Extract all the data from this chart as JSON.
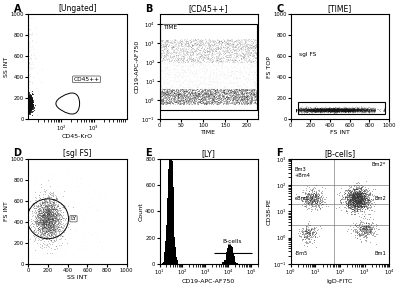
{
  "fig_width": 4.0,
  "fig_height": 2.88,
  "dpi": 100,
  "panel_titles": {
    "A": "[Ungated]",
    "B": "[CD45++]",
    "C": "[TIME]",
    "D": "[sgl FS]",
    "E": "[LY]",
    "F": "[B-cells]"
  },
  "A": {
    "xlabel": "CD45-KrO",
    "ylabel": "SS INT",
    "gate_label": "CD45++",
    "xlim_log": [
      1,
      4
    ],
    "ylim": [
      0,
      1000
    ]
  },
  "B": {
    "xlabel": "TIME",
    "ylabel": "CD19-APC-AF750",
    "gate_label": "TIME",
    "xlim": [
      0,
      225
    ],
    "ylim": [
      -1,
      4
    ]
  },
  "C": {
    "xlabel": "FS INT",
    "ylabel": "FS TOP",
    "gate_label": "sgl FS",
    "xlim": [
      0,
      1000
    ],
    "ylim": [
      0,
      1000
    ]
  },
  "D": {
    "xlabel": "SS INT",
    "ylabel": "FS INT",
    "gate_label": "LY",
    "xlim": [
      0,
      1000
    ],
    "ylim": [
      0,
      1000
    ]
  },
  "E": {
    "xlabel": "CD19-APC-AF750",
    "ylabel": "Count",
    "gate_label": "B-cells",
    "ylim": [
      0,
      800
    ]
  },
  "F": {
    "xlabel": "IgD-FITC",
    "ylabel": "CD38-PE"
  },
  "background_color": "#ffffff"
}
